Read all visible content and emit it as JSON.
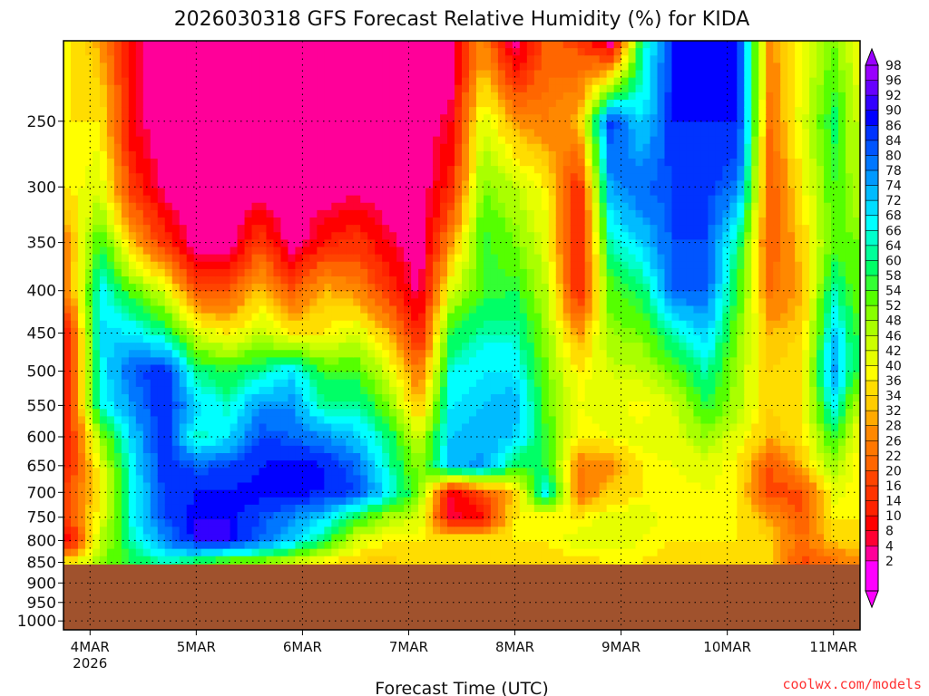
{
  "chart_data": {
    "type": "heatmap",
    "title": "2026030318 GFS Forecast Relative Humidity (%) for KIDA",
    "xlabel": "Forecast Time (UTC)",
    "ylabel": "",
    "credit": "coolwx.com/models",
    "x_ticks": [
      {
        "label": "4MAR",
        "sublabel": "2026",
        "day": 4
      },
      {
        "label": "5MAR",
        "day": 5
      },
      {
        "label": "6MAR",
        "day": 6
      },
      {
        "label": "7MAR",
        "day": 7
      },
      {
        "label": "8MAR",
        "day": 8
      },
      {
        "label": "9MAR",
        "day": 9
      },
      {
        "label": "10MAR",
        "day": 10
      },
      {
        "label": "11MAR",
        "day": 11
      }
    ],
    "xlim": [
      3.75,
      11.25
    ],
    "y_ticks": [
      250,
      300,
      350,
      400,
      450,
      500,
      550,
      600,
      650,
      700,
      750,
      800,
      850,
      900,
      950,
      1000
    ],
    "ylim": [
      200,
      1025
    ],
    "y_scale": "log",
    "grid": true,
    "colorbar_ticks": [
      98,
      96,
      92,
      90,
      86,
      84,
      80,
      78,
      74,
      72,
      68,
      66,
      64,
      60,
      58,
      54,
      52,
      48,
      46,
      42,
      40,
      36,
      34,
      32,
      28,
      26,
      22,
      20,
      16,
      14,
      10,
      8,
      4,
      2
    ],
    "colorbar_levels": [
      2,
      4,
      8,
      10,
      14,
      16,
      20,
      22,
      26,
      28,
      32,
      34,
      36,
      40,
      42,
      46,
      48,
      52,
      54,
      58,
      60,
      64,
      66,
      68,
      72,
      74,
      78,
      80,
      84,
      86,
      90,
      92,
      96,
      98
    ],
    "colorbar_colors": [
      "#ff00ff",
      "#ff00ff",
      "#ff0099",
      "#ff0033",
      "#ff0000",
      "#ff2200",
      "#ff3300",
      "#ff4400",
      "#ff6600",
      "#ff7700",
      "#ff8800",
      "#ffaa00",
      "#ffcc00",
      "#ffdd00",
      "#ffff00",
      "#e6ff00",
      "#ccff00",
      "#aaff00",
      "#88ff00",
      "#55ff00",
      "#33ff33",
      "#00ff66",
      "#00ff99",
      "#00ffcc",
      "#00ffff",
      "#00ddff",
      "#00bbff",
      "#0099ff",
      "#0077ff",
      "#0055ff",
      "#0033ff",
      "#0000ff",
      "#3300ff",
      "#6600ff",
      "#9900ff"
    ],
    "terrain_color": "#a0522d",
    "terrain_top_hpa": 855,
    "rh_profile_description_free": null,
    "rh_field": {
      "days": [
        3.8,
        4.1,
        4.4,
        4.7,
        5.0,
        5.3,
        5.6,
        5.9,
        6.2,
        6.5,
        6.8,
        7.1,
        7.4,
        7.7,
        8.0,
        8.3,
        8.6,
        8.9,
        9.2,
        9.5,
        9.8,
        10.1,
        10.4,
        10.7,
        11.0,
        11.2
      ],
      "levels": [
        200,
        250,
        300,
        350,
        400,
        450,
        500,
        550,
        600,
        650,
        700,
        750,
        800,
        850
      ],
      "rh": [
        [
          40,
          40,
          40,
          30,
          30,
          15,
          15,
          15,
          15,
          15,
          22,
          20,
          10,
          40
        ],
        [
          32,
          40,
          45,
          60,
          70,
          74,
          70,
          68,
          52,
          44,
          40,
          44,
          48,
          52
        ],
        [
          10,
          10,
          18,
          34,
          56,
          72,
          84,
          80,
          74,
          70,
          70,
          70,
          66,
          60
        ],
        [
          4,
          4,
          6,
          18,
          46,
          64,
          90,
          90,
          90,
          90,
          86,
          86,
          80,
          66
        ],
        [
          4,
          4,
          4,
          4,
          22,
          46,
          64,
          74,
          66,
          84,
          90,
          92,
          92,
          60
        ],
        [
          4,
          4,
          4,
          4,
          22,
          40,
          60,
          66,
          72,
          86,
          90,
          92,
          92,
          54
        ],
        [
          4,
          4,
          4,
          20,
          36,
          48,
          64,
          80,
          86,
          90,
          92,
          86,
          84,
          52
        ],
        [
          4,
          4,
          4,
          4,
          22,
          40,
          72,
          80,
          84,
          92,
          92,
          80,
          74,
          46
        ],
        [
          4,
          4,
          4,
          14,
          34,
          40,
          58,
          64,
          80,
          90,
          90,
          74,
          62,
          40
        ],
        [
          4,
          4,
          6,
          18,
          30,
          46,
          58,
          66,
          74,
          84,
          86,
          60,
          46,
          36
        ],
        [
          4,
          4,
          4,
          10,
          18,
          34,
          46,
          54,
          64,
          66,
          72,
          50,
          40,
          34
        ],
        [
          4,
          4,
          4,
          4,
          6,
          14,
          26,
          34,
          46,
          52,
          54,
          46,
          40,
          40
        ],
        [
          4,
          10,
          16,
          30,
          46,
          60,
          68,
          72,
          74,
          76,
          10,
          8,
          40,
          36
        ],
        [
          30,
          46,
          54,
          60,
          58,
          66,
          72,
          74,
          76,
          80,
          22,
          12,
          40,
          36
        ],
        [
          4,
          32,
          48,
          54,
          60,
          66,
          72,
          76,
          74,
          60,
          36,
          40,
          40,
          36
        ],
        [
          24,
          28,
          40,
          44,
          48,
          52,
          54,
          56,
          58,
          60,
          72,
          40,
          40,
          38
        ],
        [
          20,
          34,
          14,
          12,
          14,
          30,
          40,
          42,
          40,
          28,
          26,
          40,
          44,
          38
        ],
        [
          4,
          88,
          78,
          66,
          56,
          52,
          46,
          44,
          42,
          30,
          36,
          44,
          44,
          40
        ],
        [
          64,
          72,
          84,
          74,
          62,
          54,
          48,
          40,
          44,
          40,
          40,
          44,
          42,
          40
        ],
        [
          90,
          90,
          86,
          86,
          84,
          66,
          56,
          46,
          44,
          42,
          40,
          40,
          40,
          38
        ],
        [
          90,
          90,
          88,
          86,
          84,
          74,
          66,
          60,
          52,
          44,
          42,
          40,
          40,
          38
        ],
        [
          90,
          90,
          82,
          64,
          58,
          54,
          50,
          50,
          44,
          40,
          40,
          40,
          40,
          38
        ],
        [
          30,
          26,
          22,
          22,
          26,
          34,
          36,
          36,
          34,
          22,
          20,
          32,
          36,
          36
        ],
        [
          42,
          44,
          40,
          36,
          34,
          36,
          38,
          40,
          38,
          34,
          20,
          22,
          26,
          20
        ],
        [
          54,
          62,
          58,
          56,
          66,
          74,
          80,
          70,
          60,
          52,
          44,
          40,
          36,
          26
        ],
        [
          44,
          48,
          50,
          54,
          56,
          60,
          60,
          50,
          44,
          40,
          40,
          40,
          36,
          30
        ]
      ]
    }
  }
}
